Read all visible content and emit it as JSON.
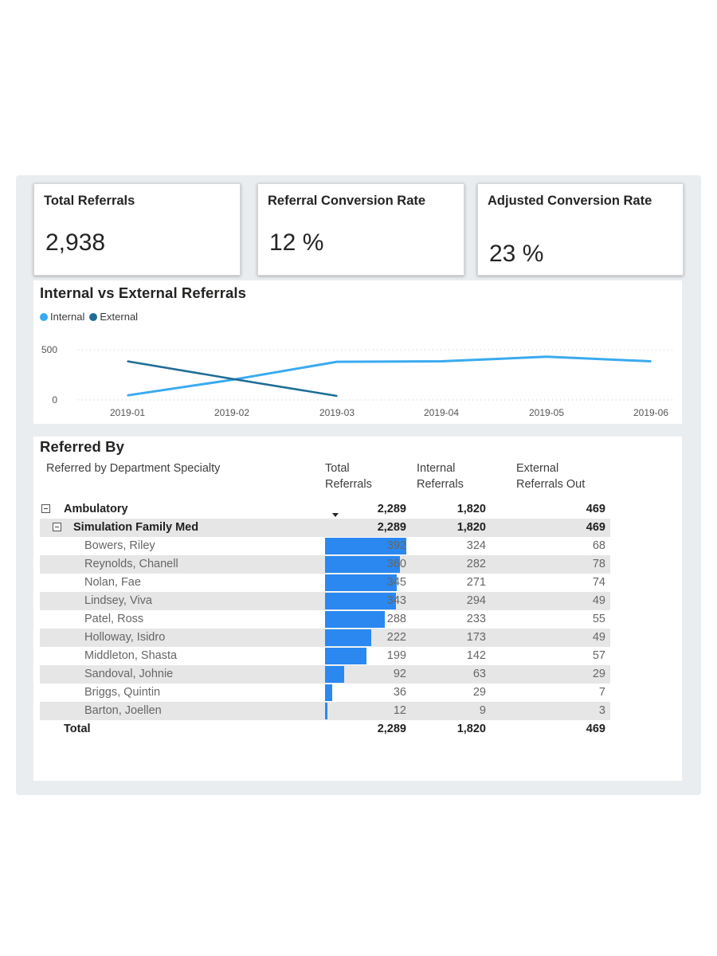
{
  "kpis": [
    {
      "title": "Total Referrals",
      "value": "2,938"
    },
    {
      "title": "Referral Conversion Rate",
      "value": "12 %"
    },
    {
      "title": "Adjusted Conversion Rate",
      "value": "23 %"
    }
  ],
  "line_chart": {
    "title": "Internal vs External Referrals",
    "legend": [
      {
        "label": "Internal",
        "color": "#3aaaf0"
      },
      {
        "label": "External",
        "color": "#1e6c96"
      }
    ],
    "y_ticks": [
      "500",
      "0"
    ],
    "x_ticks": [
      "2019-01",
      "2019-02",
      "2019-03",
      "2019-04",
      "2019-05",
      "2019-06"
    ]
  },
  "chart_data": {
    "type": "line",
    "title": "Internal vs External Referrals",
    "x": [
      "2019-01",
      "2019-02",
      "2019-03",
      "2019-04",
      "2019-05",
      "2019-06"
    ],
    "ylim": [
      0,
      500
    ],
    "series": [
      {
        "name": "Internal",
        "color": "#3aaaf0",
        "values": [
          45,
          200,
          380,
          385,
          430,
          385
        ]
      },
      {
        "name": "External",
        "color": "#1e6c96",
        "values": [
          385,
          210,
          40,
          null,
          null,
          null
        ]
      }
    ]
  },
  "matrix": {
    "title": "Referred By",
    "headers": {
      "name": "Referred by Department Specialty",
      "total": "Total\nReferrals",
      "internal": "Internal\nReferrals",
      "external": "External\nReferrals Out"
    },
    "group": {
      "name": "Ambulatory",
      "total": "2,289",
      "internal": "1,820",
      "external": "469"
    },
    "subgroup": {
      "name": "Simulation Family Med",
      "total": "2,289",
      "internal": "1,820",
      "external": "469"
    },
    "bar_color": "#2a88f0",
    "rows": [
      {
        "name": "Bowers, Riley",
        "total": "392",
        "total_value": 392,
        "internal": "324",
        "external": "68"
      },
      {
        "name": "Reynolds, Chanell",
        "total": "360",
        "total_value": 360,
        "internal": "282",
        "external": "78"
      },
      {
        "name": "Nolan, Fae",
        "total": "345",
        "total_value": 345,
        "internal": "271",
        "external": "74"
      },
      {
        "name": "Lindsey, Viva",
        "total": "343",
        "total_value": 343,
        "internal": "294",
        "external": "49"
      },
      {
        "name": "Patel, Ross",
        "total": "288",
        "total_value": 288,
        "internal": "233",
        "external": "55"
      },
      {
        "name": "Holloway, Isidro",
        "total": "222",
        "total_value": 222,
        "internal": "173",
        "external": "49"
      },
      {
        "name": "Middleton, Shasta",
        "total": "199",
        "total_value": 199,
        "internal": "142",
        "external": "57"
      },
      {
        "name": "Sandoval, Johnie",
        "total": "92",
        "total_value": 92,
        "internal": "63",
        "external": "29"
      },
      {
        "name": "Briggs, Quintin",
        "total": "36",
        "total_value": 36,
        "internal": "29",
        "external": "7"
      },
      {
        "name": "Barton, Joellen",
        "total": "12",
        "total_value": 12,
        "internal": "9",
        "external": "3"
      }
    ],
    "total_row": {
      "name": "Total",
      "total": "2,289",
      "internal": "1,820",
      "external": "469"
    }
  }
}
